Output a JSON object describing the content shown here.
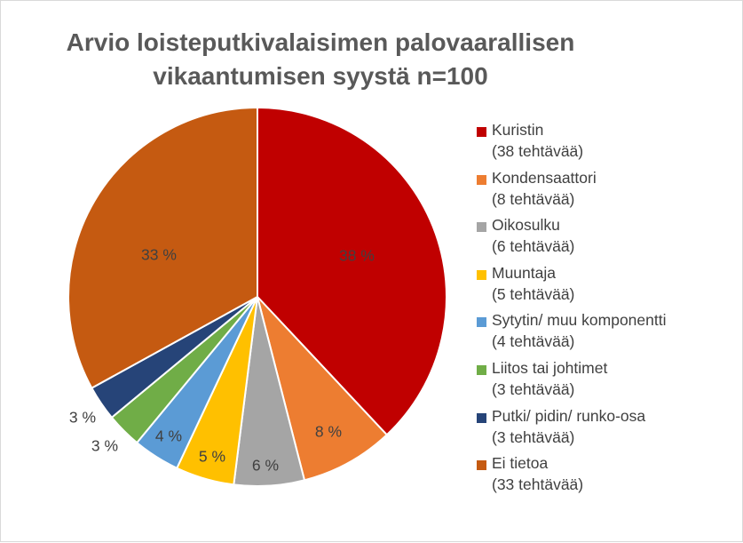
{
  "title_lines": [
    "Arvio loisteputkivalaisimen palovaarallisen",
    "vikaantumisen syystä n=100"
  ],
  "colors": {
    "kuristin": "#c00000",
    "kondensaattori": "#ed7d31",
    "oikosulku": "#a5a5a5",
    "muuntaja": "#ffc000",
    "sytytin": "#5b9bd5",
    "liitos": "#70ad47",
    "putki": "#264478",
    "ei_tietoa": "#c55a11"
  },
  "chart_data": {
    "type": "pie",
    "title": "Arvio loisteputkivalaisimen palovaarallisen vikaantumisen syystä n=100",
    "legend_position": "right",
    "slices": [
      {
        "name": "Kuristin",
        "count_label": "(38 tehtävää)",
        "value": 38,
        "label": "38 %",
        "color_key": "kuristin"
      },
      {
        "name": "Kondensaattori",
        "count_label": "(8 tehtävää)",
        "value": 8,
        "label": "8 %",
        "color_key": "kondensaattori"
      },
      {
        "name": "Oikosulku",
        "count_label": "(6 tehtävää)",
        "value": 6,
        "label": "6 %",
        "color_key": "oikosulku"
      },
      {
        "name": "Muuntaja",
        "count_label": "(5 tehtävää)",
        "value": 5,
        "label": "5 %",
        "color_key": "muuntaja"
      },
      {
        "name": "Sytytin/ muu komponentti",
        "count_label": "(4 tehtävää)",
        "value": 4,
        "label": "4 %",
        "color_key": "sytytin"
      },
      {
        "name": "Liitos tai johtimet",
        "count_label": "(3 tehtävää)",
        "value": 3,
        "label": "3 %",
        "color_key": "liitos"
      },
      {
        "name": "Putki/ pidin/ runko-osa",
        "count_label": "(3 tehtävää)",
        "value": 3,
        "label": "3 %",
        "color_key": "putki"
      },
      {
        "name": "Ei tietoa",
        "count_label": "(33 tehtävää)",
        "value": 33,
        "label": "33 %",
        "color_key": "ei_tietoa"
      }
    ]
  }
}
